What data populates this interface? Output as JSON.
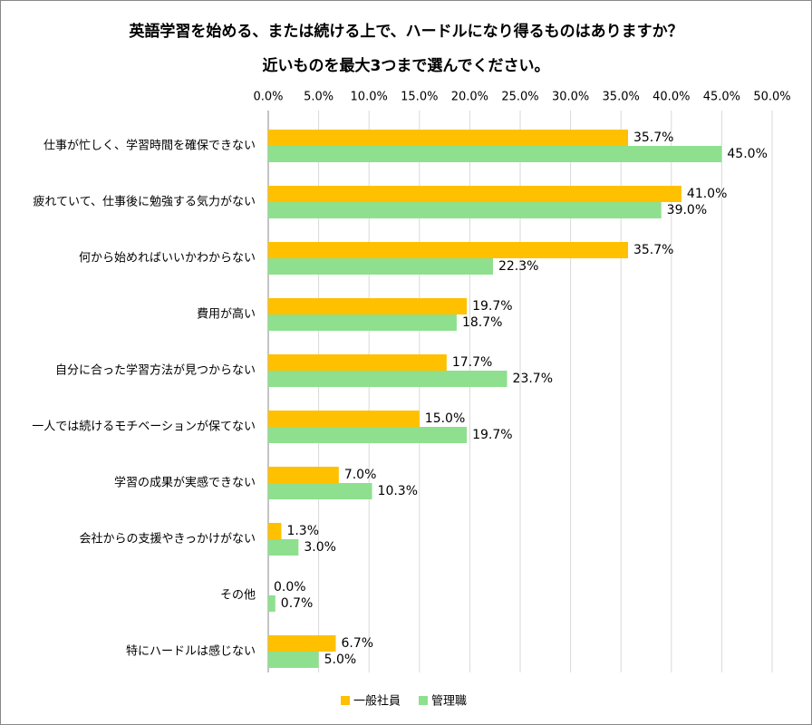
{
  "chart_data": {
    "type": "bar",
    "orientation": "horizontal",
    "title": "英語学習を始める、または続ける上で、ハードルになり得るものはありますか？",
    "subtitle": "近いものを最大3つまで選んでください。",
    "categories": [
      "仕事が忙しく、学習時間を確保できない",
      "疲れていて、仕事後に勉強する気力がない",
      "何から始めればいいかわからない",
      "費用が高い",
      "自分に合った学習方法が見つからない",
      "一人では続けるモチベーションが保てない",
      "学習の成果が実感できない",
      "会社からの支援やきっかけがない",
      "その他",
      "特にハードルは感じない"
    ],
    "series": [
      {
        "name": "一般社員",
        "color": "#FFC000",
        "values": [
          35.7,
          41.0,
          35.7,
          19.7,
          17.7,
          15.0,
          7.0,
          1.3,
          0.0,
          6.7
        ],
        "value_labels": [
          "35.7%",
          "41.0%",
          "35.7%",
          "19.7%",
          "17.7%",
          "15.0%",
          "7.0%",
          "1.3%",
          "0.0%",
          "6.7%"
        ]
      },
      {
        "name": "管理職",
        "color": "#8EE08E",
        "values": [
          45.0,
          39.0,
          22.3,
          18.7,
          23.7,
          19.7,
          10.3,
          3.0,
          0.7,
          5.0
        ],
        "value_labels": [
          "45.0%",
          "39.0%",
          "22.3%",
          "18.7%",
          "23.7%",
          "19.7%",
          "10.3%",
          "3.0%",
          "0.7%",
          "5.0%"
        ]
      }
    ],
    "xlim": [
      0,
      50
    ],
    "xticks": [
      {
        "value": 0,
        "label": "0.0%"
      },
      {
        "value": 5,
        "label": "5.0%"
      },
      {
        "value": 10,
        "label": "10.0%"
      },
      {
        "value": 15,
        "label": "15.0%"
      },
      {
        "value": 20,
        "label": "20.0%"
      },
      {
        "value": 25,
        "label": "25.0%"
      },
      {
        "value": 30,
        "label": "30.0%"
      },
      {
        "value": 35,
        "label": "35.0%"
      },
      {
        "value": 40,
        "label": "40.0%"
      },
      {
        "value": 45,
        "label": "45.0%"
      },
      {
        "value": 50,
        "label": "50.0%"
      }
    ],
    "grid": true,
    "legend": "bottom"
  }
}
